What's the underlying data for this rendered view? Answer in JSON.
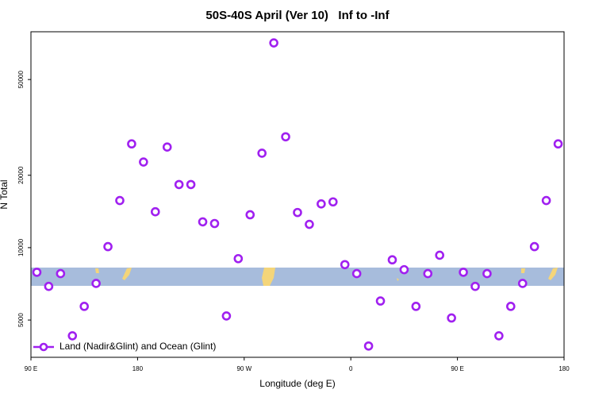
{
  "chart_data": {
    "type": "scatter",
    "title": "50S-40S April (Ver 10)   Inf to -Inf",
    "xlabel": "Longitude (deg E)",
    "ylabel": "N Total",
    "x": [
      95,
      105,
      115,
      125,
      135,
      145,
      155,
      165,
      175,
      185,
      195,
      205,
      215,
      225,
      235,
      245,
      255,
      265,
      275,
      285,
      295,
      305,
      315,
      325,
      335,
      345,
      355,
      365,
      375,
      385,
      395,
      405,
      415,
      425,
      435,
      445,
      455,
      465,
      475,
      485,
      495,
      505,
      515,
      525,
      535
    ],
    "series": [
      {
        "name": "Land (Nadir&Glint) and Ocean (Glint)",
        "color": "#a020f0",
        "values": [
          7900,
          6900,
          7800,
          4300,
          5700,
          7100,
          10100,
          15700,
          27000,
          22700,
          14100,
          26200,
          18300,
          18300,
          12800,
          12600,
          5200,
          9000,
          13700,
          24700,
          71000,
          28900,
          14000,
          12500,
          15200,
          15500,
          8500,
          7800,
          3900,
          6000,
          8900,
          8100,
          5700,
          7800,
          9300,
          5100,
          7900,
          6900,
          7800,
          4300,
          5700,
          7100,
          10100,
          15700,
          27000
        ]
      }
    ],
    "xlim": [
      90,
      540
    ],
    "xticks": [
      {
        "value": 90,
        "label": "90 E"
      },
      180,
      {
        "value": 270,
        "label": "90 W"
      },
      {
        "value": 360,
        "label": "0"
      },
      {
        "value": 450,
        "label": "90 E"
      },
      {
        "value": 540,
        "label": "180"
      }
    ],
    "ylim": [
      3500,
      79000
    ],
    "yticks": [
      5000,
      10000,
      20000,
      50000
    ],
    "log_y": true,
    "legend": "lower left"
  }
}
